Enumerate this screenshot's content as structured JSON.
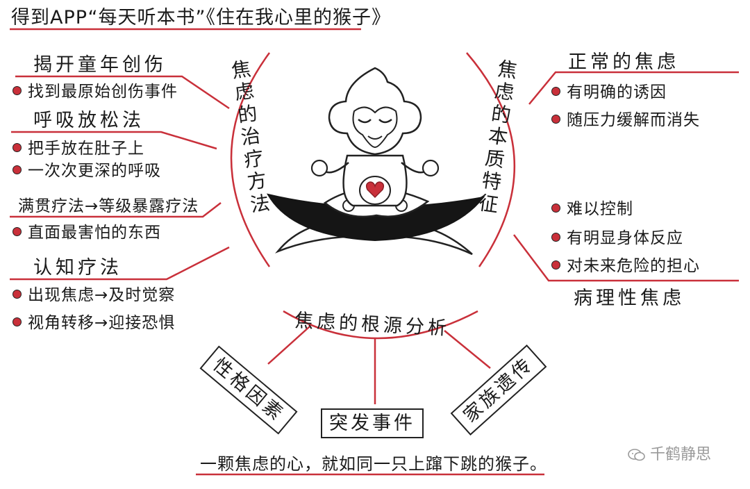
{
  "title": "得到APP“每天听本书”《住在我心里的猴子》",
  "center_image": "meditating-monkey-illustration",
  "left_branch": {
    "label": "焦虑的治疗方法",
    "sections": [
      {
        "head": "揭开童年创伤",
        "items": [
          "找到最原始创伤事件"
        ]
      },
      {
        "head": "呼吸放松法",
        "items": [
          "把手放在肚子上",
          "一次次更深的呼吸"
        ]
      },
      {
        "head": "满贯疗法→等级暴露疗法",
        "items": [
          "直面最害怕的东西"
        ]
      },
      {
        "head": "认知疗法",
        "items": [
          "出现焦虑→及时觉察",
          "视角转移→迎接恐惧"
        ]
      }
    ]
  },
  "right_branch": {
    "label": "焦虑的本质特征",
    "normal": {
      "head": "正常的焦虑",
      "items": [
        "有明确的诱因",
        "随压力缓解而消失"
      ]
    },
    "pathological": {
      "head": "病理性焦虑",
      "items": [
        "难以控制",
        "有明显身体反应",
        "对未来危险的担心"
      ]
    }
  },
  "bottom_branch": {
    "label": "焦虑的根源分析",
    "factors": [
      "性格因素",
      "突发事件",
      "家族遗传"
    ]
  },
  "caption": "一颗焦虑的心，就如同一只上蹿下跳的猴子。",
  "watermark": "千鹤静思",
  "colors": {
    "accent": "#c9303a",
    "ink": "#1a1a1a",
    "watermark": "#9a9a9a"
  }
}
